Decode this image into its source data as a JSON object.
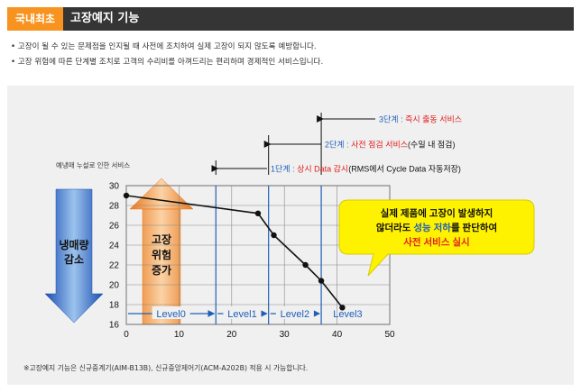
{
  "header": {
    "badge": "국내최초",
    "title": "고장예지 기능"
  },
  "bullets": [
    "• 고장이 될 수 있는 문제점을 인지될 때 사전에 조치하여 실제 고장이 되지 않도록 예방합니다.",
    "• 고장 위험에 따른 단계별 조치로 고객의 수리비를 아껴드리는 편리하며 경제적인 서비스입니다."
  ],
  "footnote": "※고장예지 기능은 신규중계기(AIM-B13B), 신규중앙제어기(ACM-A202B) 적용 시 가능합니다.",
  "colors": {
    "accent": "#f7931e",
    "title_bar": "#353535",
    "level_blue": "#1f5fb8",
    "red": "#e02020",
    "callout": "#fff200"
  },
  "chart_data": {
    "type": "line",
    "title": "예냉매 누설로 인한 서비스",
    "x_ticks": [
      "0",
      "10",
      "20",
      "30",
      "40",
      "50"
    ],
    "y_ticks": [
      "16",
      "18",
      "20",
      "22",
      "24",
      "26",
      "28",
      "30"
    ],
    "xlim": [
      0,
      50
    ],
    "ylim": [
      16,
      30
    ],
    "grid": true,
    "x": [
      0,
      25,
      28,
      34,
      37,
      41
    ],
    "y": [
      29,
      27.2,
      25,
      22,
      20.4,
      17.7
    ],
    "thresholds": [
      17,
      27,
      37
    ],
    "levels": [
      "Level0",
      "Level1",
      "Level2",
      "Level3"
    ],
    "left_arrow_label": "냉매량\n감소",
    "right_arrow_label": "고장\n위험\n증가",
    "stages": [
      {
        "prefix": "3단계 : ",
        "label": "즉시 출동 서비스",
        "suffix": ""
      },
      {
        "prefix": "2단계 : ",
        "label": "사전 점검 서비스",
        "suffix": "(수일 내 점검)"
      },
      {
        "prefix": "1단계 : ",
        "label": "상시 Data 감시",
        "suffix": "(RMS에서 Cycle Data 자동저장)"
      }
    ],
    "callout": {
      "line1": "실제 제품에 고장이 발생하지",
      "line2a": "않더라도 ",
      "line2b": "성능 저하",
      "line2c": "를 판단하여",
      "line3": "사전 서비스 실시"
    }
  }
}
